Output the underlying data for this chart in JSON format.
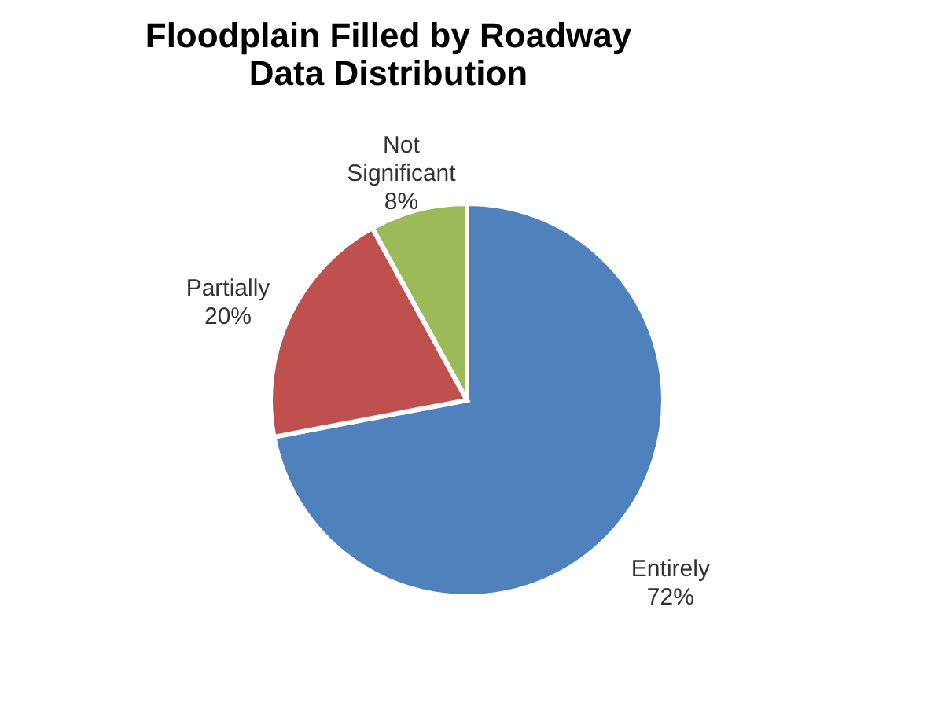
{
  "chart_data": {
    "type": "pie",
    "title": "Floodplain Filled by Roadway Data Distribution",
    "categories": [
      "Entirely",
      "Partially",
      "Not Significant"
    ],
    "values": [
      72,
      20,
      8
    ],
    "value_labels": [
      "72%",
      "20%",
      "8%"
    ],
    "colors": [
      "#4f81bd",
      "#c0504d",
      "#9bbb59"
    ],
    "legend": false
  }
}
